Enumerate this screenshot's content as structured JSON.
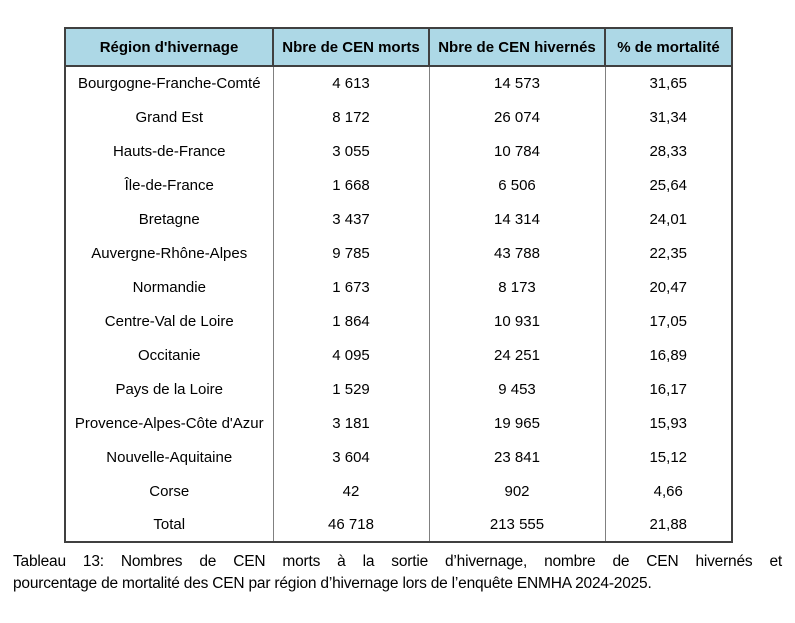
{
  "table": {
    "headers": [
      "Région d'hivernage",
      "Nbre de CEN morts",
      "Nbre de CEN hivernés",
      "% de mortalité"
    ],
    "rows": [
      [
        "Bourgogne-Franche-Comté",
        "4 613",
        "14 573",
        "31,65"
      ],
      [
        "Grand Est",
        "8 172",
        "26 074",
        "31,34"
      ],
      [
        "Hauts-de-France",
        "3 055",
        "10 784",
        "28,33"
      ],
      [
        "Île-de-France",
        "1 668",
        "6 506",
        "25,64"
      ],
      [
        "Bretagne",
        "3 437",
        "14 314",
        "24,01"
      ],
      [
        "Auvergne-Rhône-Alpes",
        "9 785",
        "43 788",
        "22,35"
      ],
      [
        "Normandie",
        "1 673",
        "8 173",
        "20,47"
      ],
      [
        "Centre-Val de Loire",
        "1 864",
        "10 931",
        "17,05"
      ],
      [
        "Occitanie",
        "4 095",
        "24 251",
        "16,89"
      ],
      [
        "Pays de la Loire",
        "1 529",
        "9 453",
        "16,17"
      ],
      [
        "Provence-Alpes-Côte d'Azur",
        "3 181",
        "19 965",
        "15,93"
      ],
      [
        "Nouvelle-Aquitaine",
        "3 604",
        "23 841",
        "15,12"
      ],
      [
        "Corse",
        "42",
        "902",
        "4,66"
      ],
      [
        "Total",
        "46 718",
        "213 555",
        "21,88"
      ]
    ]
  },
  "caption_lines": [
    "Tableau 13: Nombres de CEN morts à la sortie d’hivernage, nombre de CEN hivernés et",
    "pourcentage de mortalité des CEN par région d’hivernage lors de l’enquête ENMHA 2024-2025."
  ],
  "colors": {
    "header_bg": "#ADD8E6",
    "border_dark": "#404040",
    "grid_line": "#808080"
  }
}
